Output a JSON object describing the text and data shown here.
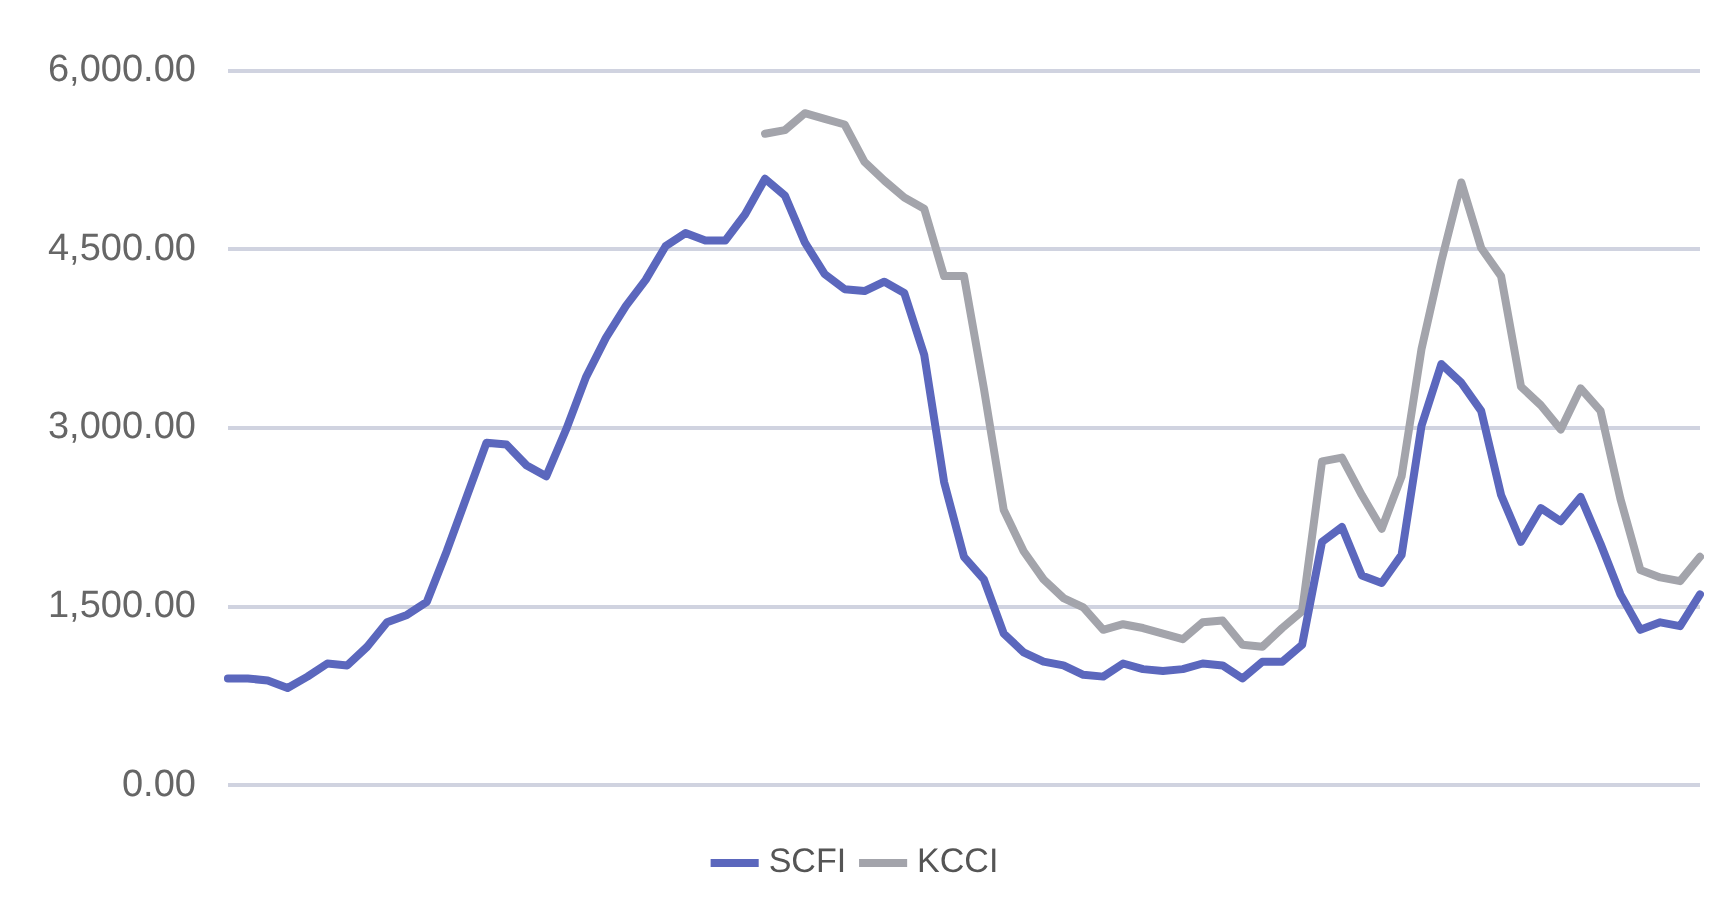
{
  "chart_data": {
    "type": "line",
    "categories": [
      null,
      null,
      null,
      null,
      null,
      null,
      null,
      null,
      null,
      null,
      null,
      null,
      null,
      null,
      null,
      null,
      null,
      null,
      null,
      null,
      null,
      null,
      null,
      null,
      null,
      null,
      null,
      null,
      null,
      null,
      null,
      null,
      null,
      null,
      null,
      null,
      null,
      null,
      null,
      null,
      null,
      null,
      null,
      null,
      null,
      null,
      null,
      null,
      null,
      null,
      null,
      null,
      null,
      null,
      null,
      null,
      null,
      null,
      null,
      null,
      null,
      null,
      null,
      null,
      null,
      null,
      null,
      null,
      null,
      null,
      null,
      null,
      null,
      null,
      null
    ],
    "series": [
      {
        "name": "SCFI",
        "color": "#5b67bd",
        "values": [
          896,
          896,
          880,
          817,
          912,
          1022,
          1006,
          1163,
          1368,
          1430,
          1540,
          1965,
          2421,
          2877,
          2861,
          2688,
          2594,
          2987,
          3427,
          3757,
          4024,
          4244,
          4527,
          4637,
          4574,
          4574,
          4795,
          5093,
          4952,
          4559,
          4292,
          4166,
          4150,
          4229,
          4134,
          3616,
          2547,
          1918,
          1729,
          1273,
          1116,
          1038,
          1006,
          927,
          912,
          1022,
          975,
          959,
          975,
          1022,
          1006,
          896,
          1037,
          1037,
          1179,
          2044,
          2169,
          1761,
          1698,
          1934,
          3018,
          3537,
          3380,
          3144,
          2437,
          2044,
          2327,
          2217,
          2421,
          2028,
          1603,
          1305,
          1368,
          1336,
          1603
        ]
      },
      {
        "name": "KCCI",
        "color": "#a3a4ab",
        "values": [
          null,
          null,
          null,
          null,
          null,
          null,
          null,
          null,
          null,
          null,
          null,
          null,
          null,
          null,
          null,
          null,
          null,
          null,
          null,
          null,
          null,
          null,
          null,
          null,
          null,
          null,
          null,
          5471,
          5502,
          5644,
          5596,
          5549,
          5235,
          5078,
          4936,
          4842,
          4276,
          4276,
          3333,
          2311,
          1965,
          1729,
          1572,
          1493,
          1305,
          1352,
          1320,
          1273,
          1226,
          1368,
          1383,
          1179,
          1163,
          1320,
          1462,
          2720,
          2751,
          2437,
          2154,
          2594,
          3663,
          4402,
          5062,
          4512,
          4276,
          3348,
          3191,
          2987,
          3333,
          3144,
          2405,
          1808,
          1745,
          1714,
          1918
        ]
      }
    ],
    "ylim": [
      0,
      6000
    ],
    "yticks": [
      {
        "value": 0,
        "label": "0.00"
      },
      {
        "value": 1500,
        "label": "1,500.00"
      },
      {
        "value": 3000,
        "label": "3,000.00"
      },
      {
        "value": 4500,
        "label": "4,500.00"
      },
      {
        "value": 6000,
        "label": "6,000.00"
      }
    ],
    "grid": "y",
    "legend": "bottom",
    "marker": "none",
    "line_style": "solid"
  }
}
